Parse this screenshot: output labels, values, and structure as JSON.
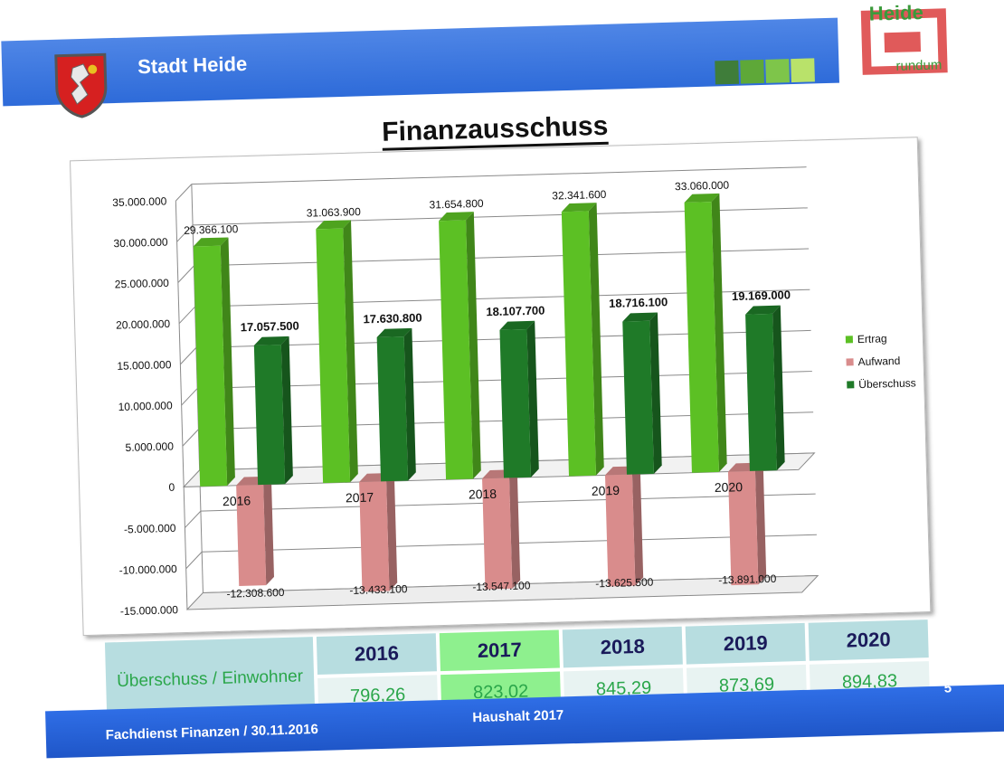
{
  "header": {
    "title": "Stadt Heide",
    "logo_text_top": "Heide",
    "logo_text_bottom": "rundum",
    "bar_color": "#3a78e0",
    "square_colors": [
      "#3f7d3a",
      "#5ea838",
      "#7ec54a",
      "#b9e26a"
    ]
  },
  "title": "Finanzausschuss",
  "chart_data": {
    "type": "bar",
    "categories": [
      "2016",
      "2017",
      "2018",
      "2019",
      "2020"
    ],
    "series": [
      {
        "name": "Ertrag",
        "color": "#5cc024",
        "values": [
          29366100,
          31063900,
          31654800,
          32341600,
          33060000
        ],
        "labels": [
          "29.366.100",
          "31.063.900",
          "31.654.800",
          "32.341.600",
          "33.060.000"
        ]
      },
      {
        "name": "Aufwand",
        "color": "#d98c8c",
        "values": [
          -12308600,
          -13433100,
          -13547100,
          -13625500,
          -13891000
        ],
        "labels": [
          "-12.308.600",
          "-13.433.100",
          "-13.547.100",
          "-13.625.500",
          "-13.891.000"
        ]
      },
      {
        "name": "Überschuss",
        "color": "#1f7a28",
        "values": [
          17057500,
          17630800,
          18107700,
          18716100,
          19169000
        ],
        "labels": [
          "17.057.500",
          "17.630.800",
          "18.107.700",
          "18.716.100",
          "19.169.000"
        ]
      }
    ],
    "ylim": [
      -15000000,
      35000000
    ],
    "yticks": [
      35000000,
      30000000,
      25000000,
      20000000,
      15000000,
      10000000,
      5000000,
      0,
      -5000000,
      -10000000,
      -15000000
    ],
    "ytick_labels": [
      "35.000.000",
      "30.000.000",
      "25.000.000",
      "20.000.000",
      "15.000.000",
      "10.000.000",
      "5.000.000",
      "0",
      "-5.000.000",
      "-10.000.000",
      "-15.000.000"
    ],
    "legend": [
      "Ertrag",
      "Aufwand",
      "Überschuss"
    ],
    "legend_position": "right",
    "grid": true
  },
  "table": {
    "row_header": "Überschuss / Einwohner",
    "years": [
      "2016",
      "2017",
      "2018",
      "2019",
      "2020"
    ],
    "values": [
      "796,26",
      "823,02",
      "845,29",
      "873,69",
      "894,83"
    ]
  },
  "footer": {
    "left": "Fachdienst Finanzen / 30.11.2016",
    "center": "Haushalt 2017",
    "page": "5"
  }
}
